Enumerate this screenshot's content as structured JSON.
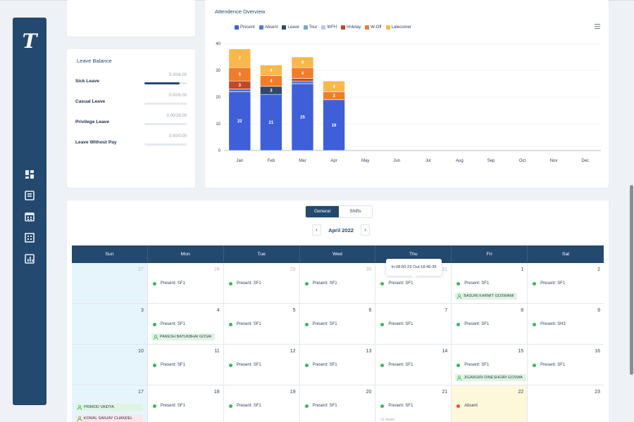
{
  "sidebar": {
    "logo": "T",
    "icons": [
      "dashboard-icon",
      "document-icon",
      "calendar-icon",
      "grid-icon",
      "chart-icon"
    ]
  },
  "leave_balance": {
    "title": "Leave Balance",
    "items": [
      {
        "name": "Sick Leave",
        "value": "5.00/6.00",
        "fraction": 0.833
      },
      {
        "name": "Casual Leave",
        "value": "0.00/6.00",
        "fraction": 0
      },
      {
        "name": "Privilege Leave",
        "value": "0.00/28.00",
        "fraction": 0
      },
      {
        "name": "Leave Without Pay",
        "value": "0.00/0.00",
        "fraction": 0
      }
    ]
  },
  "chart": {
    "title": "Attendence Overview"
  },
  "chart_data": {
    "type": "bar",
    "stacked": true,
    "categories": [
      "Jan",
      "Feb",
      "Mar",
      "Apr",
      "May",
      "Jun",
      "Jul",
      "Aug",
      "Sep",
      "Oct",
      "Nov",
      "Dec"
    ],
    "ylim": [
      0,
      40
    ],
    "yticks": [
      0,
      10,
      20,
      30,
      40
    ],
    "grid": true,
    "legend_position": "top-left",
    "series": [
      {
        "name": "Present",
        "color": "#3e5fd8",
        "values": [
          22,
          21,
          25,
          19,
          0,
          0,
          0,
          0,
          0,
          0,
          0,
          0
        ]
      },
      {
        "name": "Absent",
        "color": "#4f79d6",
        "values": [
          1,
          0,
          1,
          0,
          0,
          0,
          0,
          0,
          0,
          0,
          0,
          0
        ]
      },
      {
        "name": "Leave",
        "color": "#2e4a6b",
        "values": [
          0,
          3,
          0,
          0,
          0,
          0,
          0,
          0,
          0,
          0,
          0,
          0
        ]
      },
      {
        "name": "Tour",
        "color": "#7fa3d8",
        "values": [
          0,
          0,
          0,
          0,
          0,
          0,
          0,
          0,
          0,
          0,
          0,
          0
        ]
      },
      {
        "name": "WFH",
        "color": "#b9c9ee",
        "values": [
          0,
          0,
          0,
          0,
          0,
          0,
          0,
          0,
          0,
          0,
          0,
          0
        ]
      },
      {
        "name": "Holiday",
        "color": "#c2482b",
        "values": [
          3,
          0,
          1,
          0,
          0,
          0,
          0,
          0,
          0,
          0,
          0,
          0
        ]
      },
      {
        "name": "W-Off",
        "color": "#f07d2c",
        "values": [
          5,
          4,
          4,
          3,
          0,
          0,
          0,
          0,
          0,
          0,
          0,
          0
        ]
      },
      {
        "name": "Latecomer",
        "color": "#f9b84c",
        "values": [
          7,
          4,
          4,
          4,
          0,
          0,
          0,
          0,
          0,
          0,
          0,
          0
        ]
      }
    ],
    "data_labels": [
      {
        "category": "Jan",
        "series": "Present",
        "label": "22"
      },
      {
        "category": "Jan",
        "series": "Holiday",
        "label": "3"
      },
      {
        "category": "Jan",
        "series": "W-Off",
        "label": "5"
      },
      {
        "category": "Jan",
        "series": "Latecomer",
        "label": "7"
      },
      {
        "category": "Feb",
        "series": "Present",
        "label": "21"
      },
      {
        "category": "Feb",
        "series": "Leave",
        "label": "3"
      },
      {
        "category": "Feb",
        "series": "W-Off",
        "label": "4"
      },
      {
        "category": "Feb",
        "series": "Latecomer",
        "label": "4"
      },
      {
        "category": "Mar",
        "series": "Present",
        "label": "25"
      },
      {
        "category": "Mar",
        "series": "W-Off",
        "label": "4"
      },
      {
        "category": "Mar",
        "series": "Latecomer",
        "label": "4"
      },
      {
        "category": "Apr",
        "series": "Present",
        "label": "19"
      },
      {
        "category": "Apr",
        "series": "W-Off",
        "label": "3"
      },
      {
        "category": "Apr",
        "series": "Latecomer",
        "label": "4"
      }
    ]
  },
  "calendar": {
    "tabs": [
      "General",
      "Shifts"
    ],
    "active_tab": "General",
    "month": "April 2022",
    "prev": "‹",
    "next": "›",
    "weekdays": [
      "Sun",
      "Mon",
      "Tue",
      "Wed",
      "Thu",
      "Fri",
      "Sat"
    ],
    "tooltip": "In:08:50:23 Out:18:46:35",
    "cells": [
      {
        "day": "27",
        "other": true,
        "sun": true
      },
      {
        "day": "28",
        "other": true,
        "status": "Present: SF1"
      },
      {
        "day": "29",
        "other": true,
        "status": "Present: SF1"
      },
      {
        "day": "30",
        "other": true,
        "status": "Present: SF1"
      },
      {
        "day": "31",
        "other": true,
        "status": "Present: SF1"
      },
      {
        "day": "1",
        "status": "Present: SF1",
        "badge": "BASURI KARMIT GOSWAMI"
      },
      {
        "day": "2",
        "status": "Present: SF1"
      },
      {
        "day": "3",
        "sun": true
      },
      {
        "day": "4",
        "status": "Present: SF1",
        "badge": "PARESH BATUKBHAI GOSAI"
      },
      {
        "day": "5",
        "status": "Present: SF1"
      },
      {
        "day": "6",
        "status": "Present: SF1"
      },
      {
        "day": "7",
        "status": "Present: SF1"
      },
      {
        "day": "8",
        "status": "Present: SF1"
      },
      {
        "day": "9",
        "status": "Present: SH3"
      },
      {
        "day": "10",
        "sun": true
      },
      {
        "day": "11",
        "status": "Present: SF1"
      },
      {
        "day": "12",
        "status": "Present: SF1"
      },
      {
        "day": "13",
        "status": "Present: SF1"
      },
      {
        "day": "14",
        "status": "Present: SF1"
      },
      {
        "day": "15",
        "status": "Present: SF1",
        "badge": "JIGARGIRI DINESHGIRI GOSWA"
      },
      {
        "day": "16",
        "status": "Present: SF1"
      },
      {
        "day": "17",
        "sun": true,
        "badges": [
          "PRIMOD VAIDYA",
          "KOMAL SANJAY CHANDEL"
        ]
      },
      {
        "day": "18",
        "status": "Present: SF1"
      },
      {
        "day": "19",
        "status": "Present: SF1"
      },
      {
        "day": "20",
        "status": "Present: SF1"
      },
      {
        "day": "21",
        "status": "Present: SF1",
        "more": "+2 more"
      },
      {
        "day": "22",
        "status": "Absent",
        "absent": true,
        "today": true
      },
      {
        "day": "23"
      }
    ]
  }
}
